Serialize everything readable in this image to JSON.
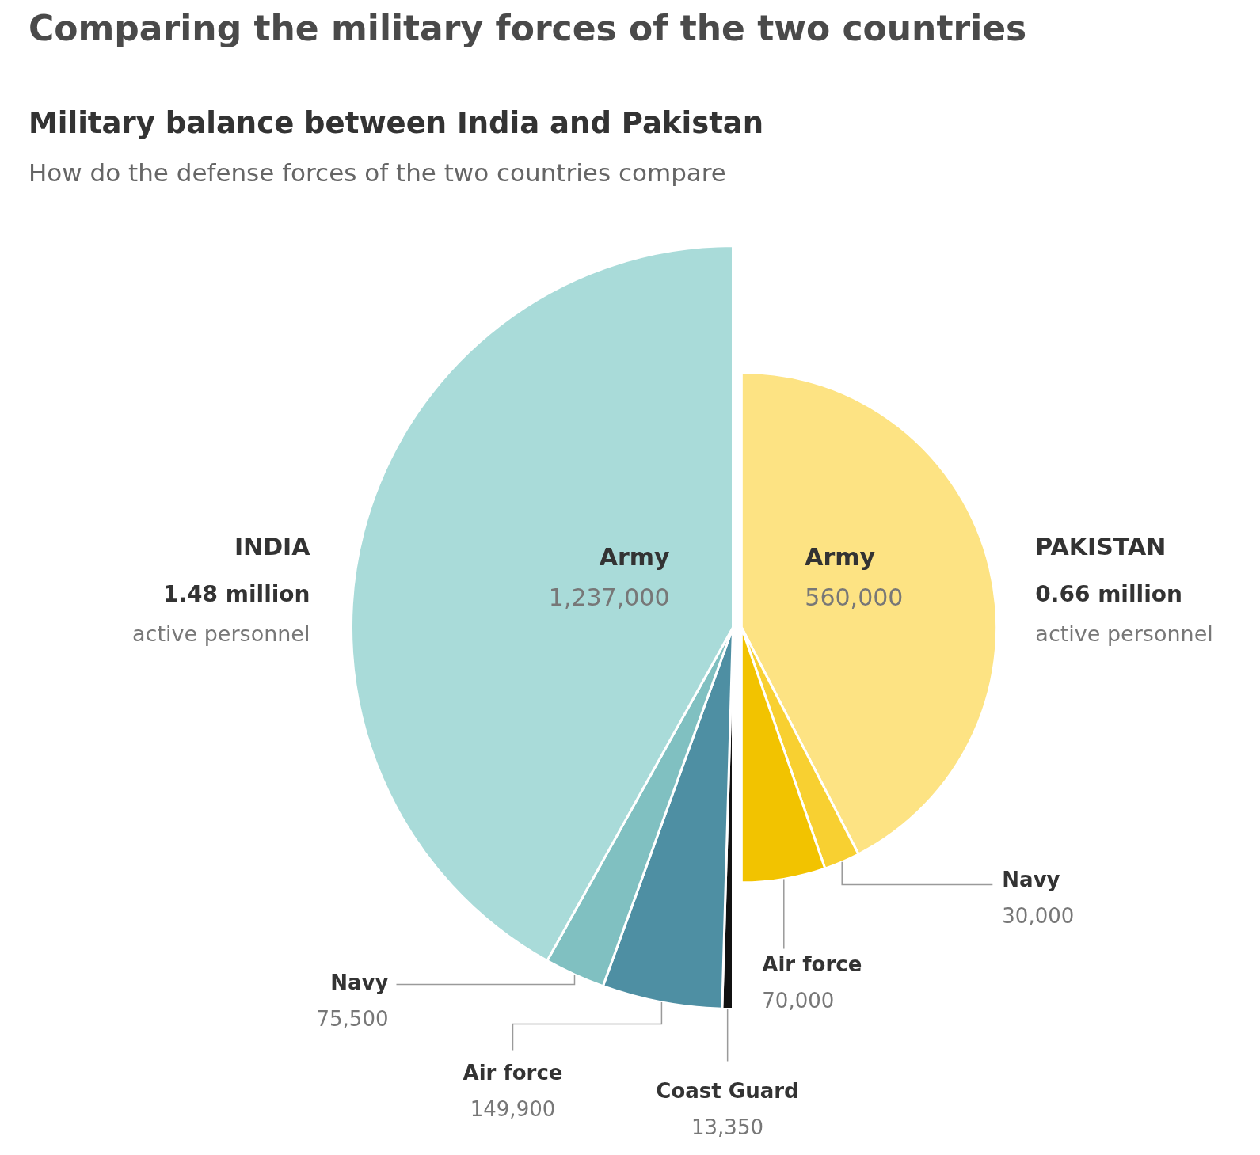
{
  "chart_data": [
    {
      "type": "pie",
      "title": "INDIA",
      "subtitle": "1.48 million",
      "annotations": [
        "active personnel",
        "Comparing the military forces of the two countries",
        "Military balance between India and Pakistan",
        "How do the defense forces of the two countries compare"
      ],
      "categories": [
        "Coast Guard",
        "Air force",
        "Navy",
        "Army"
      ],
      "values": [
        13350,
        149900,
        75500,
        1237000
      ],
      "colors": [
        "#111111",
        "#4e8fa3",
        "#80c0c1",
        "#a9dbd9"
      ],
      "value_labels": [
        "13,350",
        "149,900",
        "75,500",
        "1,237,000"
      ]
    },
    {
      "type": "pie",
      "title": "PAKISTAN",
      "subtitle": "0.66 million",
      "annotations": [
        "active personnel"
      ],
      "categories": [
        "Army",
        "Navy",
        "Air force"
      ],
      "values": [
        560000,
        30000,
        70000
      ],
      "colors": [
        "#fde383",
        "#f8d031",
        "#f2c300"
      ],
      "value_labels": [
        "560,000",
        "30,000",
        "70,000"
      ]
    }
  ]
}
